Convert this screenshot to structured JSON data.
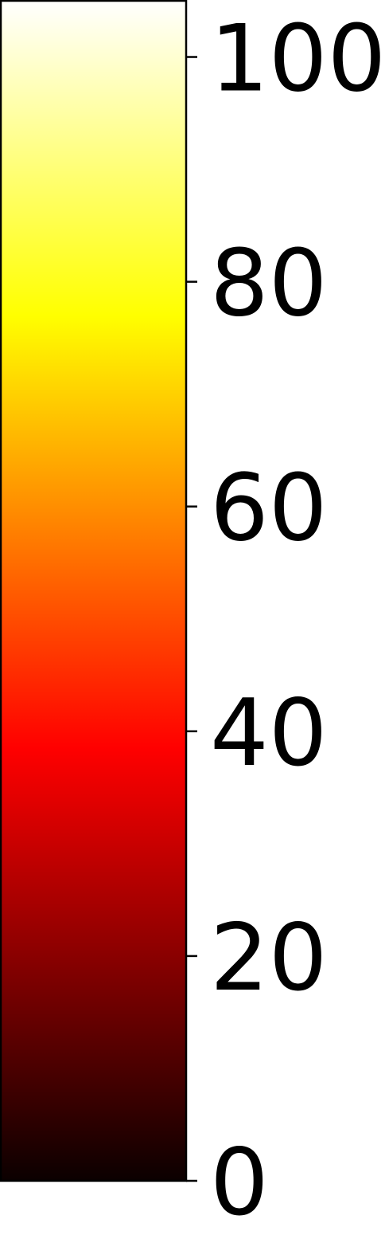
{
  "chart_data": {
    "type": "colorbar",
    "colormap": "hot",
    "range": [
      0,
      105
    ],
    "ticks": [
      {
        "value": 0,
        "label": "0"
      },
      {
        "value": 20,
        "label": "20"
      },
      {
        "value": 40,
        "label": "40"
      },
      {
        "value": 60,
        "label": "60"
      },
      {
        "value": 80,
        "label": "80"
      },
      {
        "value": 100,
        "label": "100"
      }
    ],
    "gradient_stops": [
      {
        "value": 0,
        "color": "#0b0000"
      },
      {
        "value": 38.5,
        "color": "#ff0000"
      },
      {
        "value": 77.0,
        "color": "#ffff00"
      },
      {
        "value": 105,
        "color": "#ffffff"
      }
    ],
    "frame_color": "#000000",
    "text_color": "#000000"
  }
}
